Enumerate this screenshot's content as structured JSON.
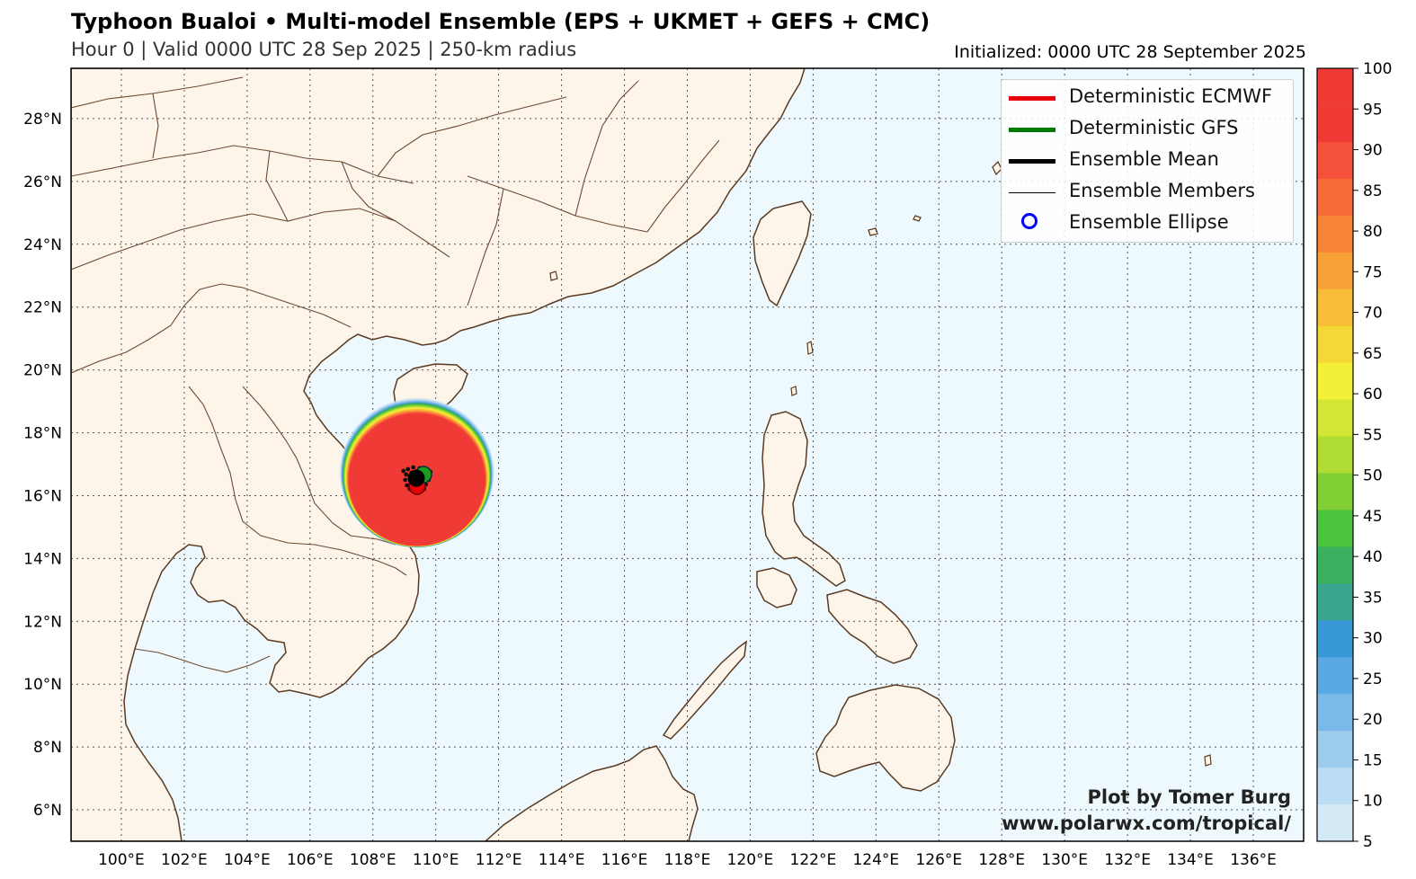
{
  "header": {
    "title": "Typhoon Bualoi • Multi-model Ensemble (EPS + UKMET + GEFS + CMC)",
    "subtitle": "Hour 0 | Valid 0000 UTC 28 Sep 2025 | 250-km radius",
    "initialized": "Initialized: 0000 UTC 28 September 2025"
  },
  "map": {
    "lon_ticks": [
      "100°E",
      "102°E",
      "104°E",
      "106°E",
      "108°E",
      "110°E",
      "112°E",
      "114°E",
      "116°E",
      "118°E",
      "120°E",
      "122°E",
      "124°E",
      "126°E",
      "128°E",
      "130°E",
      "132°E",
      "134°E",
      "136°E"
    ],
    "lat_ticks": [
      "28°N",
      "26°N",
      "24°N",
      "22°N",
      "20°N",
      "18°N",
      "16°N",
      "14°N",
      "12°N",
      "10°N",
      "8°N",
      "6°N"
    ],
    "ocean_color": "#eef9fd",
    "land_color": "#fdf5e9",
    "coast_color": "#5a3a22",
    "storm_center": {
      "lon": 109.4,
      "lat": 16.5
    }
  },
  "legend": {
    "items": [
      {
        "label": "Deterministic ECMWF",
        "color": "#e8000b",
        "kind": "thick-line"
      },
      {
        "label": "Deterministic GFS",
        "color": "#007a00",
        "kind": "thick-line"
      },
      {
        "label": "Ensemble Mean",
        "color": "#000000",
        "kind": "thick-line"
      },
      {
        "label": "Ensemble Members",
        "color": "#000000",
        "kind": "thin-line"
      },
      {
        "label": "Ensemble Ellipse",
        "color": "#0000ff",
        "kind": "circle"
      }
    ]
  },
  "colorbar": {
    "labels": [
      "100",
      "95",
      "90",
      "85",
      "80",
      "75",
      "70",
      "65",
      "60",
      "55",
      "50",
      "45",
      "40",
      "35",
      "30",
      "25",
      "20",
      "15",
      "10",
      "5"
    ],
    "colors": [
      "#f03a36",
      "#f5503a",
      "#f86a37",
      "#f98436",
      "#f8a137",
      "#f7bd38",
      "#f5d837",
      "#f3f137",
      "#d3e535",
      "#b0db33",
      "#81cf35",
      "#4ac43b",
      "#3db05f",
      "#3ba48d",
      "#3998d8",
      "#5aa9e3",
      "#7bbae8",
      "#9ccbee",
      "#bcdcf3",
      "#d5e8f6"
    ]
  },
  "credit": {
    "line1": "Plot by Tomer Burg",
    "line2": "www.polarwx.com/tropical/"
  },
  "chart_data": {
    "type": "map",
    "title": "Typhoon Bualoi • Multi-model Ensemble (EPS + UKMET + GEFS + CMC)",
    "extent": {
      "lon": [
        98.4,
        137.6
      ],
      "lat": [
        5.0,
        29.6
      ]
    },
    "strike_probability_percent": {
      "center_lon": 109.4,
      "center_lat": 16.5,
      "core_value": 100,
      "radius_km": 250
    },
    "colorbar_range": [
      5,
      100
    ],
    "colorbar_step": 5
  }
}
